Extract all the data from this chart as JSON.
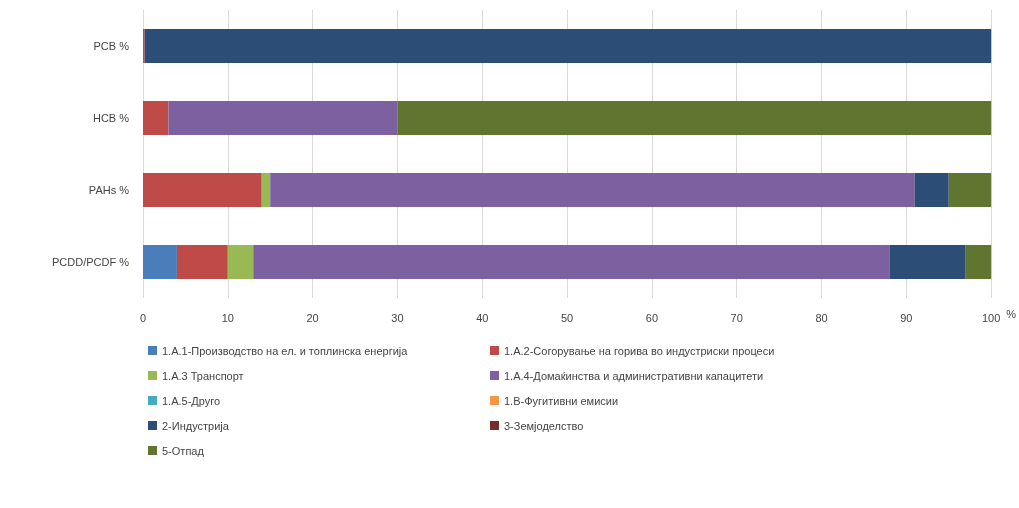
{
  "chart_data": {
    "type": "bar",
    "orientation": "horizontal",
    "stacked": true,
    "xlabel": "%",
    "categories": [
      "PCB %",
      "HCB %",
      "PAHs %",
      "PCDD/PCDF %"
    ],
    "series": [
      {
        "name": "1.А.1-Производство на ел. и топлинска енергија",
        "color": "#4a7ebb",
        "values": [
          0,
          0,
          0,
          4
        ]
      },
      {
        "name": "1.А.2-Согорување на горива во индустриски процеси",
        "color": "#be4b48",
        "values": [
          0.2,
          3,
          14,
          6
        ]
      },
      {
        "name": "1.А.3 Транспорт",
        "color": "#98b954",
        "values": [
          0,
          0,
          1,
          3
        ]
      },
      {
        "name": "1.А.4-Домаќинства и административни капацитети",
        "color": "#7d60a0",
        "values": [
          0,
          27,
          76,
          75
        ]
      },
      {
        "name": "1.А.5-Друго",
        "color": "#46aac5",
        "values": [
          0,
          0,
          0,
          0
        ]
      },
      {
        "name": "1.B-Фугитивни емисии",
        "color": "#f79646",
        "values": [
          0,
          0,
          0,
          0
        ]
      },
      {
        "name": "2-Индустрија",
        "color": "#2c4d75",
        "values": [
          99.8,
          0,
          4,
          9
        ]
      },
      {
        "name": "3-Земјоделство",
        "color": "#772c2a",
        "values": [
          0,
          0,
          0,
          0
        ]
      },
      {
        "name": "5-Отпад",
        "color": "#5f7530",
        "values": [
          0,
          70,
          5,
          3
        ]
      }
    ],
    "xlim": [
      0,
      100
    ],
    "xticks": [
      0,
      10,
      20,
      30,
      40,
      50,
      60,
      70,
      80,
      90,
      100
    ],
    "grid": "x",
    "legend": "bottom"
  }
}
